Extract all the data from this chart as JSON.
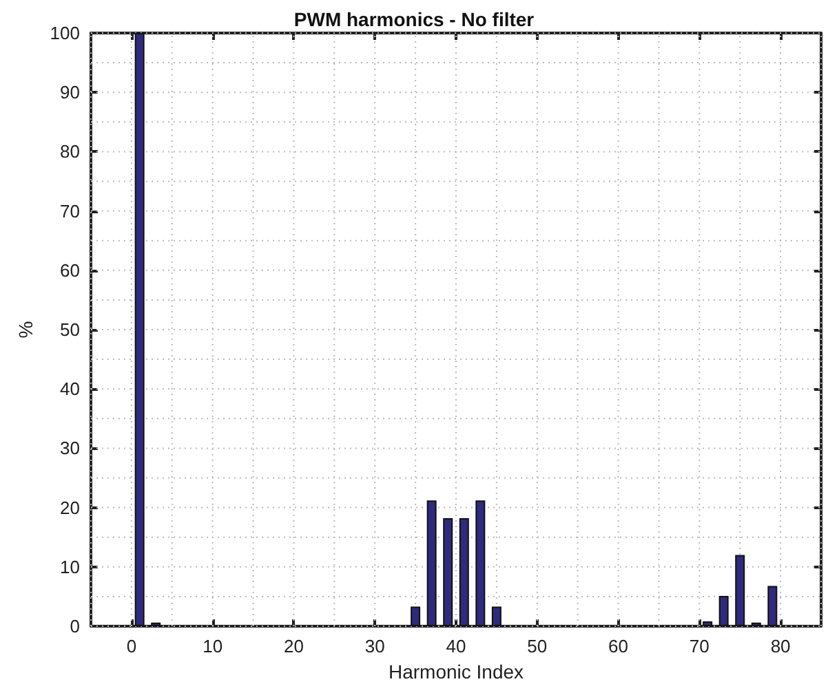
{
  "chart_data": {
    "type": "bar",
    "title": "PWM harmonics - No filter",
    "xlabel": "Harmonic Index",
    "ylabel": "%",
    "x": [
      1,
      3,
      35,
      37,
      39,
      41,
      43,
      45,
      71,
      73,
      75,
      77,
      79
    ],
    "series": [
      {
        "color": "#2e2a7e",
        "values": [
          100,
          0.6,
          3.3,
          21.2,
          18.2,
          18.2,
          21.2,
          3.3,
          0.8,
          5.1,
          12,
          0.6,
          6.8
        ]
      }
    ],
    "xlim": [
      -5,
      85
    ],
    "xticks": [
      0,
      10,
      20,
      30,
      40,
      50,
      60,
      70,
      80
    ],
    "ylim": [
      0,
      100
    ],
    "yticks": [
      0,
      10,
      20,
      30,
      40,
      50,
      60,
      70,
      80,
      90,
      100
    ],
    "grid": true
  }
}
